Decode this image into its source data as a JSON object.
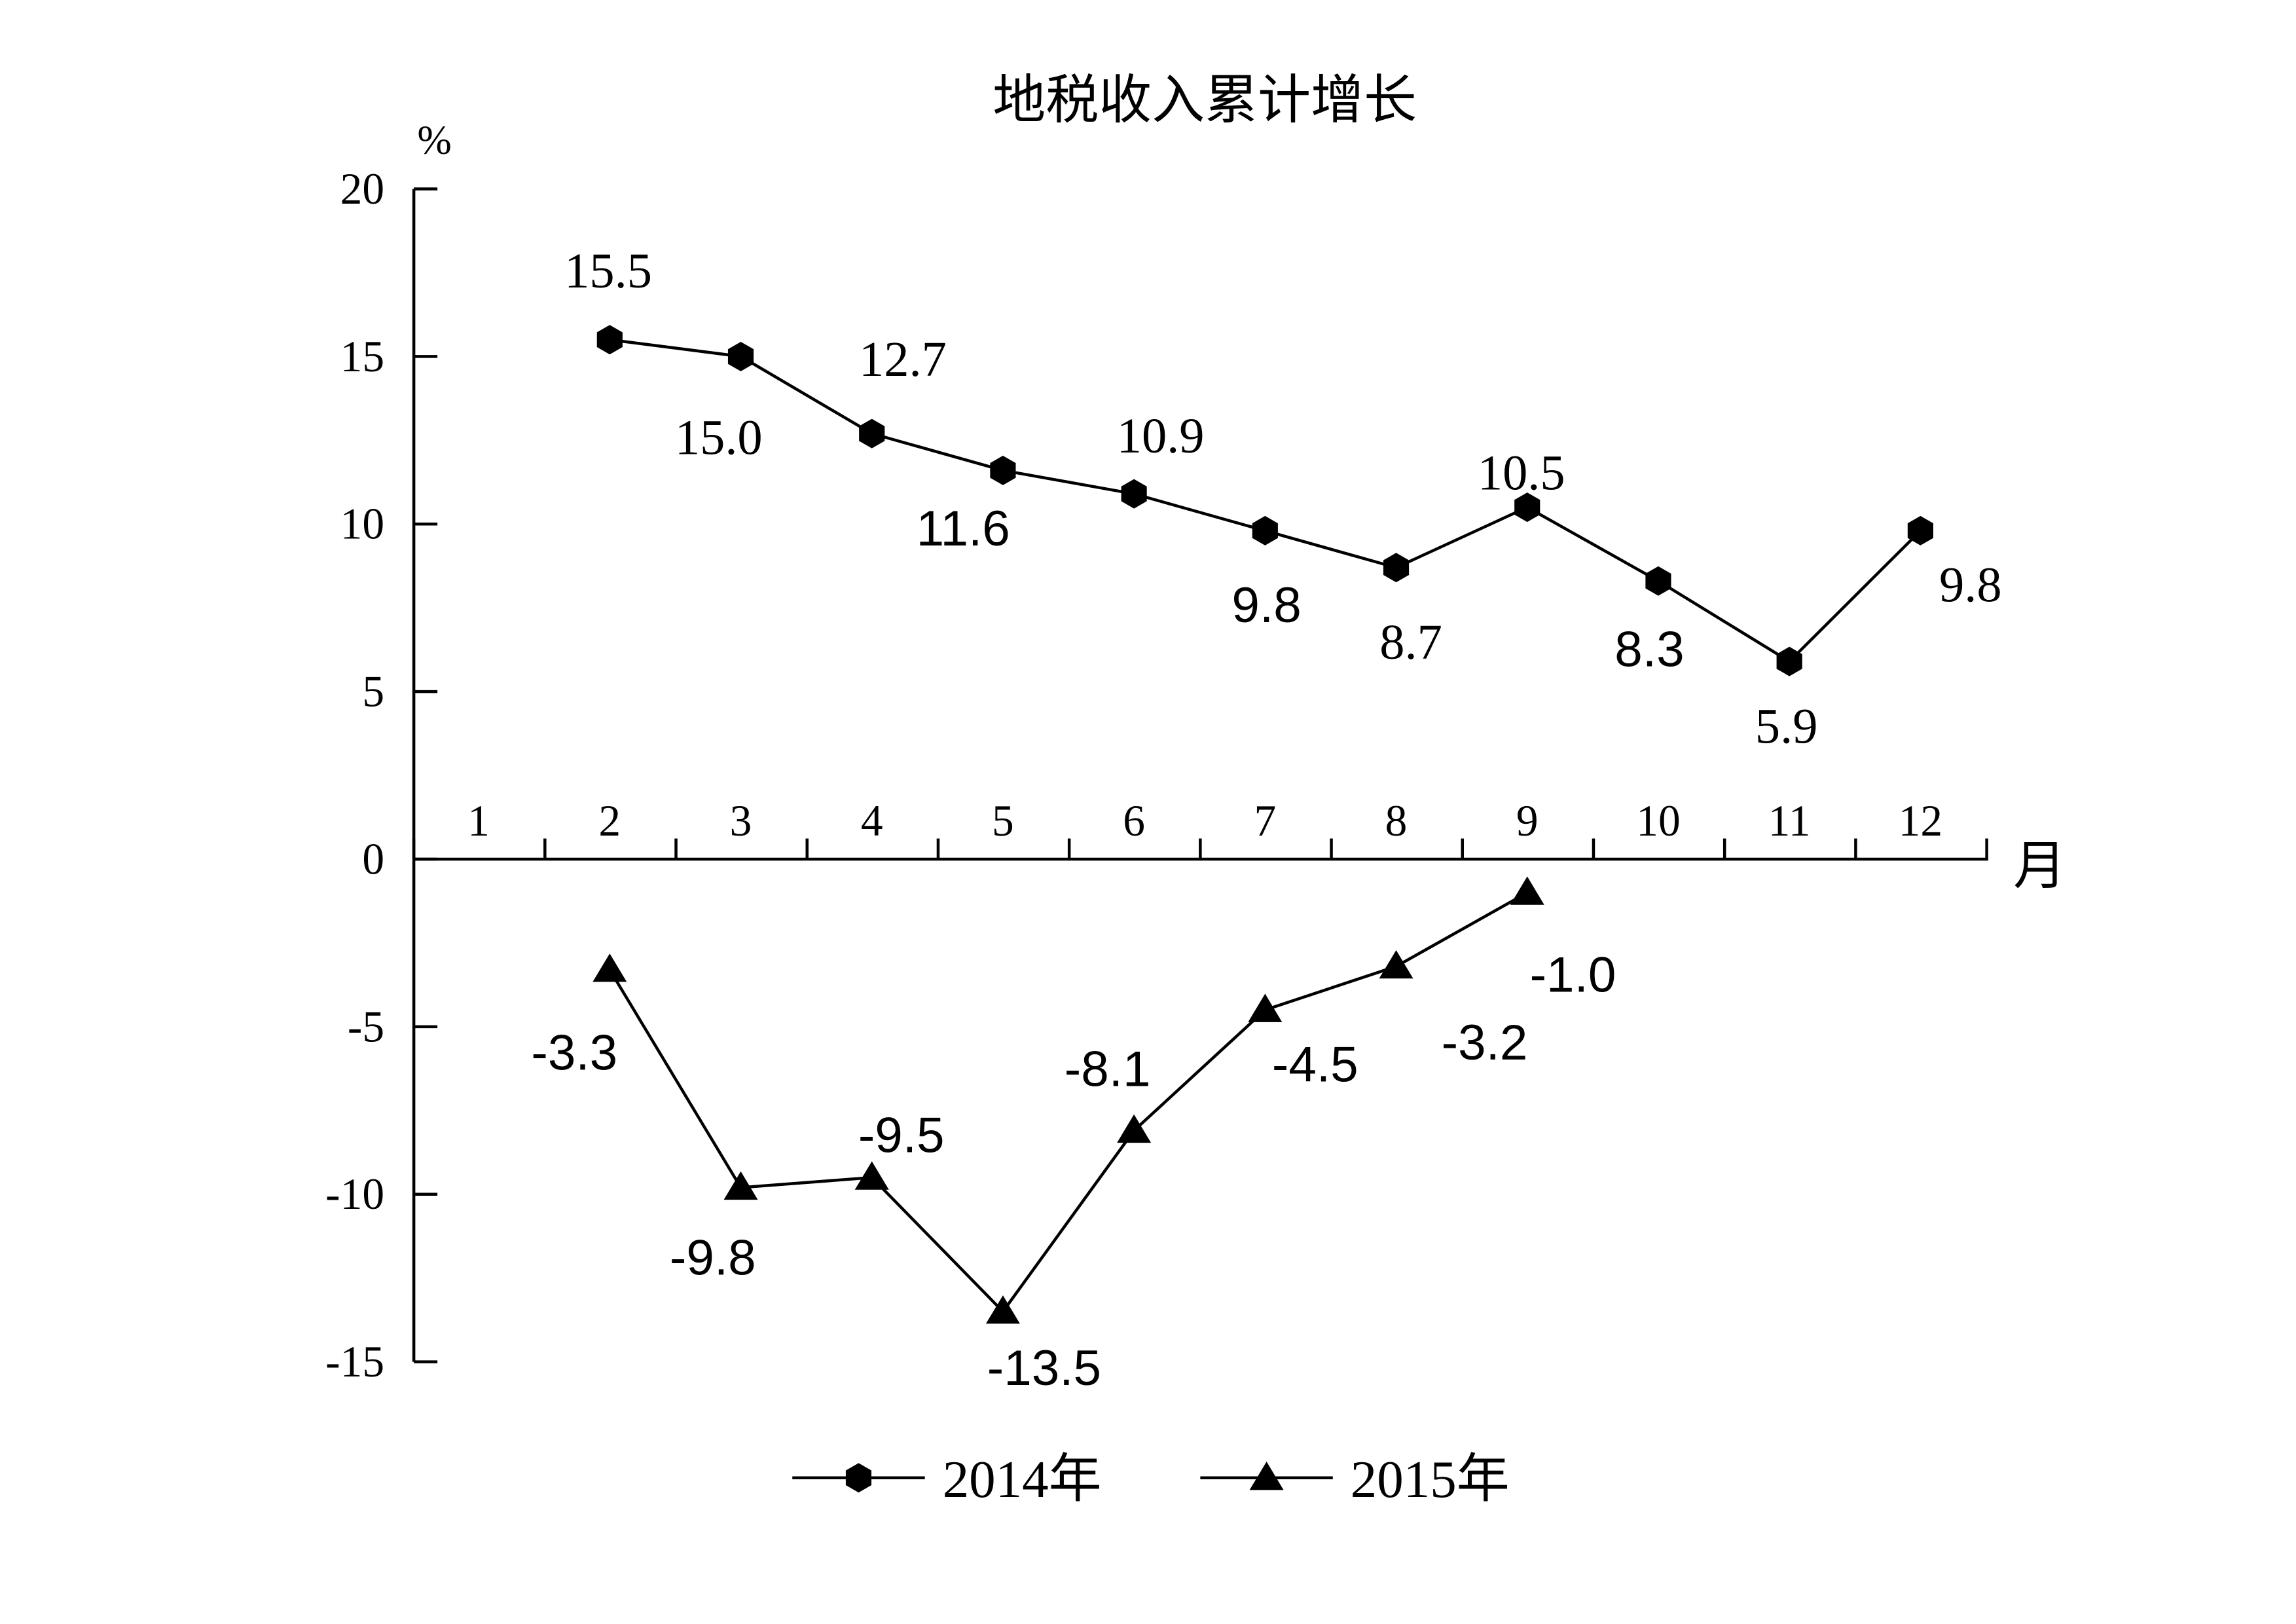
{
  "chart_data": {
    "type": "line",
    "title": "地税收入累计增长",
    "ylabel": "%",
    "xlabel": "月",
    "ylim": [
      -15,
      20
    ],
    "yticks": [
      20,
      15,
      10,
      5,
      0,
      -5,
      -10,
      -15
    ],
    "categories": [
      "1",
      "2",
      "3",
      "4",
      "5",
      "6",
      "7",
      "8",
      "9",
      "10",
      "11",
      "12"
    ],
    "grid": false,
    "legend_position": "bottom",
    "series": [
      {
        "name": "2014年",
        "marker": "hexagon",
        "x": [
          2,
          3,
          4,
          5,
          6,
          7,
          8,
          9,
          10,
          11,
          12
        ],
        "values": [
          15.5,
          15.0,
          12.7,
          11.6,
          10.9,
          9.8,
          8.7,
          10.5,
          8.3,
          5.9,
          9.8
        ],
        "labels": [
          "15.5",
          "15.0",
          "12.7",
          "11.6",
          "10.9",
          "9.8",
          "8.7",
          "10.5",
          "8.3",
          "5.9",
          "9.8"
        ]
      },
      {
        "name": "2015年",
        "marker": "triangle",
        "x": [
          2,
          3,
          4,
          5,
          6,
          7,
          8,
          9
        ],
        "values": [
          -3.3,
          -9.8,
          -9.5,
          -13.5,
          -8.1,
          -4.5,
          -3.2,
          -1.0
        ],
        "labels": [
          "-3.3",
          "-9.8",
          "-9.5",
          "-13.5",
          "-8.1",
          "-4.5",
          "-3.2",
          "-1.0"
        ]
      }
    ]
  }
}
